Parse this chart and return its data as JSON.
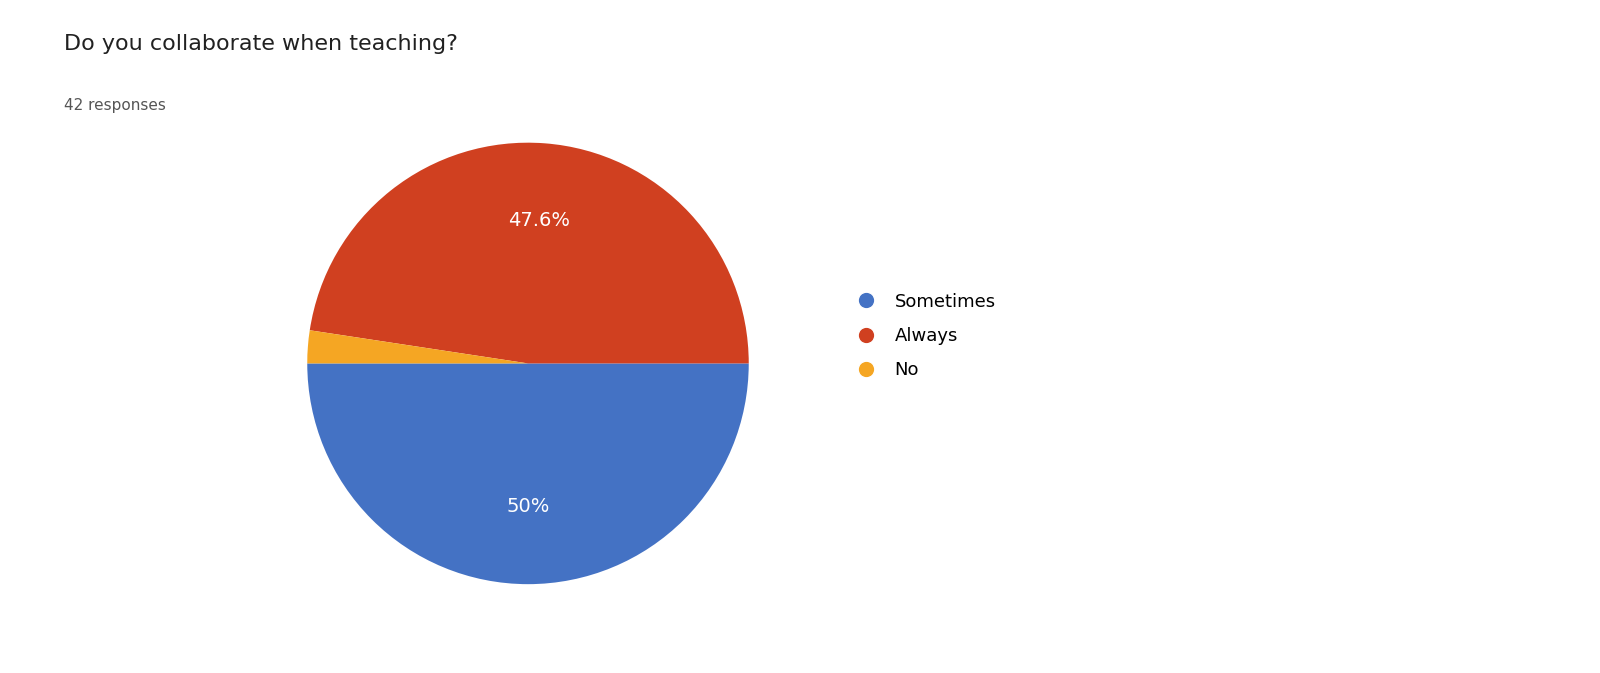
{
  "title": "Do you collaborate when teaching?",
  "subtitle": "42 responses",
  "labels": [
    "Sometimes",
    "Always",
    "No"
  ],
  "values": [
    50.0,
    47.6,
    2.4
  ],
  "colors": [
    "#4472C4",
    "#D04020",
    "#F5A623"
  ],
  "background_color": "#ffffff",
  "title_fontsize": 16,
  "subtitle_fontsize": 11,
  "legend_fontsize": 13,
  "autopct_fontsize": 14,
  "startangle": 180,
  "pctdistance": 0.65
}
